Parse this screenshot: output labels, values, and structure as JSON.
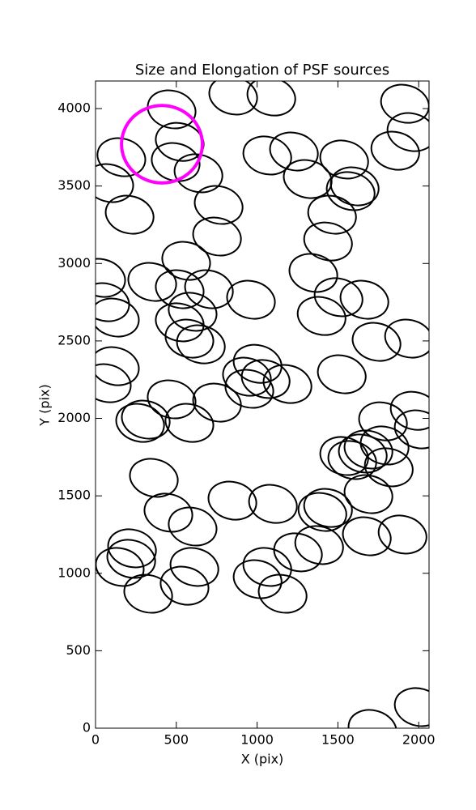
{
  "chart_data": {
    "type": "ellipse",
    "title": "Size and Elongation of PSF sources",
    "x_label": "X (pix)",
    "y_label": "Y (pix)",
    "xlim": [
      0,
      2064
    ],
    "ylim": [
      0,
      4178
    ],
    "xticks": [
      0,
      500,
      1000,
      1500,
      2000
    ],
    "yticks": [
      0,
      500,
      1000,
      1500,
      2000,
      2500,
      3000,
      3500,
      4000
    ],
    "color": "#000000",
    "ellipse_width": 300,
    "ellipse_height": 240,
    "ellipse_angle": -15,
    "x": [
      471,
      852,
      1088,
      1915,
      1955,
      1855,
      160,
      85,
      521,
      496,
      637,
      1063,
      1228,
      1313,
      1539,
      1579,
      1604,
      211,
      762,
      752,
      1464,
      1439,
      35,
      60,
      120,
      561,
      351,
      521,
      702,
      601,
      521,
      581,
      652,
      962,
      1348,
      1504,
      1399,
      1664,
      1739,
      1940,
      120,
      70,
      1003,
      937,
      952,
      1053,
      1188,
      1524,
      471,
      752,
      311,
      276,
      581,
      1779,
      1975,
      2000,
      1539,
      1589,
      1654,
      1689,
      1789,
      1815,
      1689,
      361,
      451,
      601,
      847,
      1098,
      1404,
      1439,
      1679,
      1900,
      226,
      221,
      150,
      612,
      551,
      326,
      1063,
      1003,
      1158,
      1253,
      1384,
      2000,
      1714
    ],
    "y": [
      3995,
      4084,
      4078,
      4031,
      3848,
      3728,
      3686,
      3519,
      3785,
      3655,
      3582,
      3697,
      3723,
      3545,
      3671,
      3467,
      3498,
      3315,
      3378,
      3174,
      3315,
      3142,
      2907,
      2750,
      2651,
      3017,
      2881,
      2834,
      2834,
      2688,
      2620,
      2515,
      2478,
      2766,
      2939,
      2782,
      2661,
      2766,
      2494,
      2515,
      2337,
      2227,
      2352,
      2269,
      2191,
      2254,
      2222,
      2285,
      2123,
      2102,
      1992,
      1971,
      1971,
      1981,
      2049,
      1929,
      1757,
      1731,
      1773,
      1799,
      1825,
      1684,
      1511,
      1616,
      1391,
      1302,
      1469,
      1448,
      1396,
      1422,
      1239,
      1250,
      1161,
      1093,
      1041,
      1041,
      920,
      868,
      1041,
      962,
      868,
      1135,
      1182,
      136,
      -5
    ],
    "highlight": {
      "x": 411,
      "y": 3770,
      "radius": 250,
      "color": "#ff00ff"
    }
  }
}
